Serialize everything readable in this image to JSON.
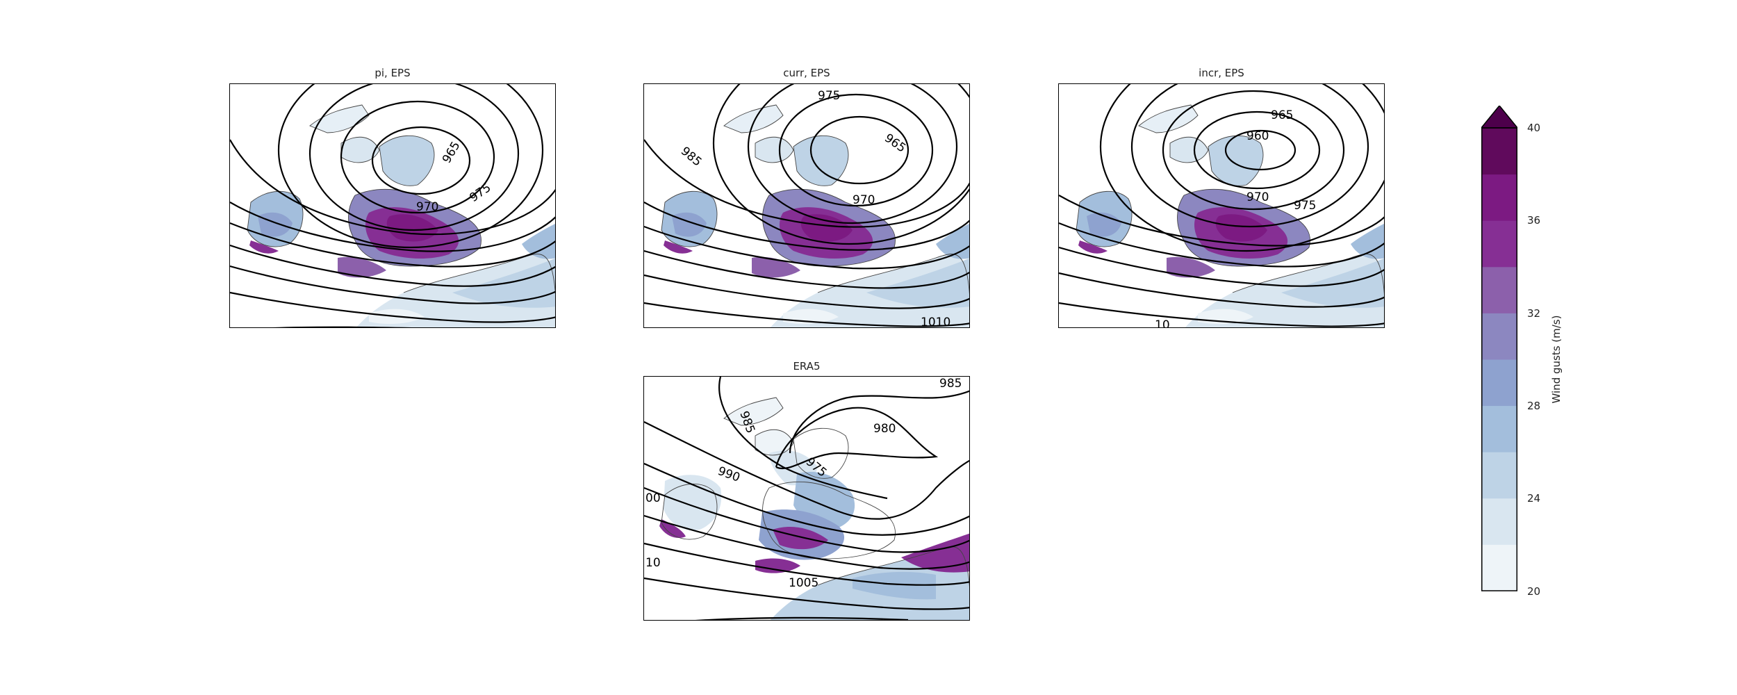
{
  "panels": [
    {
      "id": "pi",
      "title": "pi, EPS",
      "contour_labels": [
        "965",
        "970",
        "975"
      ]
    },
    {
      "id": "curr",
      "title": "curr, EPS",
      "contour_labels": [
        "975",
        "985",
        "965",
        "970",
        "1010"
      ]
    },
    {
      "id": "incr",
      "title": "incr, EPS",
      "contour_labels": [
        "965",
        "960",
        "970",
        "975",
        "10"
      ]
    },
    {
      "id": "era5",
      "title": "ERA5",
      "contour_labels": [
        "985",
        "985",
        "980",
        "975",
        "990",
        "00",
        "10",
        "1005"
      ]
    }
  ],
  "colorbar": {
    "label": "Wind gusts (m/s)",
    "tick_labels": [
      "20",
      "24",
      "28",
      "32",
      "36",
      "40"
    ],
    "colors": [
      "#eef4f8",
      "#d9e6f0",
      "#bed3e6",
      "#a3bedc",
      "#8ea2cf",
      "#8c87c0",
      "#8c60ab",
      "#862f94",
      "#7c1a82",
      "#600a5c",
      "#4d004b"
    ],
    "extend": "max"
  },
  "chart_data": {
    "type": "contour-map",
    "variable": "Wind gusts (m/s)",
    "levels": [
      20,
      22,
      24,
      26,
      28,
      30,
      32,
      34,
      36,
      38,
      40
    ],
    "colorbar_ticks": [
      20,
      24,
      28,
      32,
      36,
      40
    ],
    "overlay": "mean sea level pressure contours (hPa)",
    "panels": [
      "pi, EPS",
      "curr, EPS",
      "incr, EPS",
      "ERA5"
    ]
  }
}
